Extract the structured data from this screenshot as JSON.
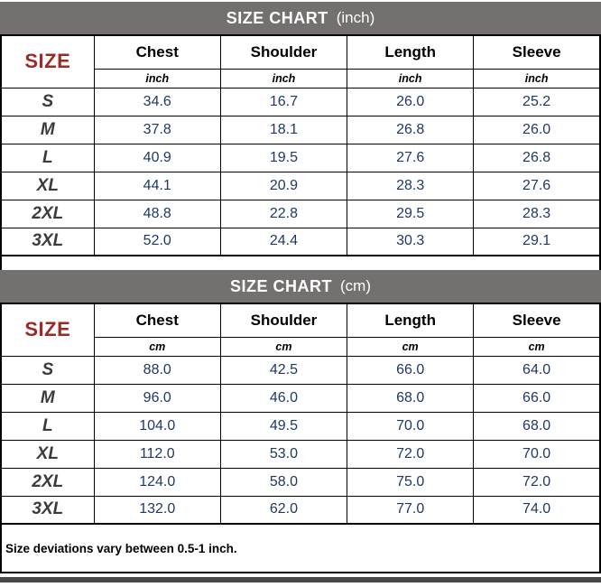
{
  "chart_data": [
    {
      "type": "table",
      "title": "SIZE CHART",
      "title_unit": "(inch)",
      "corner": "SIZE",
      "columns": [
        "Chest",
        "Shoulder",
        "Length",
        "Sleeve"
      ],
      "unit": "inch",
      "rows": [
        {
          "size": "S",
          "values": [
            "34.6",
            "16.7",
            "26.0",
            "25.2"
          ]
        },
        {
          "size": "M",
          "values": [
            "37.8",
            "18.1",
            "26.8",
            "26.0"
          ]
        },
        {
          "size": "L",
          "values": [
            "40.9",
            "19.5",
            "27.6",
            "26.8"
          ]
        },
        {
          "size": "XL",
          "values": [
            "44.1",
            "20.9",
            "28.3",
            "27.6"
          ]
        },
        {
          "size": "2XL",
          "values": [
            "48.8",
            "22.8",
            "29.5",
            "28.3"
          ]
        },
        {
          "size": "3XL",
          "values": [
            "52.0",
            "24.4",
            "30.3",
            "29.1"
          ]
        }
      ]
    },
    {
      "type": "table",
      "title": "SIZE CHART",
      "title_unit": "(cm)",
      "corner": "SIZE",
      "columns": [
        "Chest",
        "Shoulder",
        "Length",
        "Sleeve"
      ],
      "unit": "cm",
      "rows": [
        {
          "size": "S",
          "values": [
            "88.0",
            "42.5",
            "66.0",
            "64.0"
          ]
        },
        {
          "size": "M",
          "values": [
            "96.0",
            "46.0",
            "68.0",
            "66.0"
          ]
        },
        {
          "size": "L",
          "values": [
            "104.0",
            "49.5",
            "70.0",
            "68.0"
          ]
        },
        {
          "size": "XL",
          "values": [
            "112.0",
            "53.0",
            "72.0",
            "70.0"
          ]
        },
        {
          "size": "2XL",
          "values": [
            "124.0",
            "58.0",
            "75.0",
            "72.0"
          ]
        },
        {
          "size": "3XL",
          "values": [
            "132.0",
            "62.0",
            "77.0",
            "74.0"
          ]
        }
      ]
    }
  ],
  "footer": {
    "note": "Size deviations vary between 0.5-1 inch."
  },
  "colors": {
    "title_bar_bg": "#757070",
    "title_text": "#ffffff",
    "size_label_red": "#9B2B26",
    "value_navy": "#1F3864",
    "border": "#000000",
    "next_section_bar": "#4A4646"
  }
}
